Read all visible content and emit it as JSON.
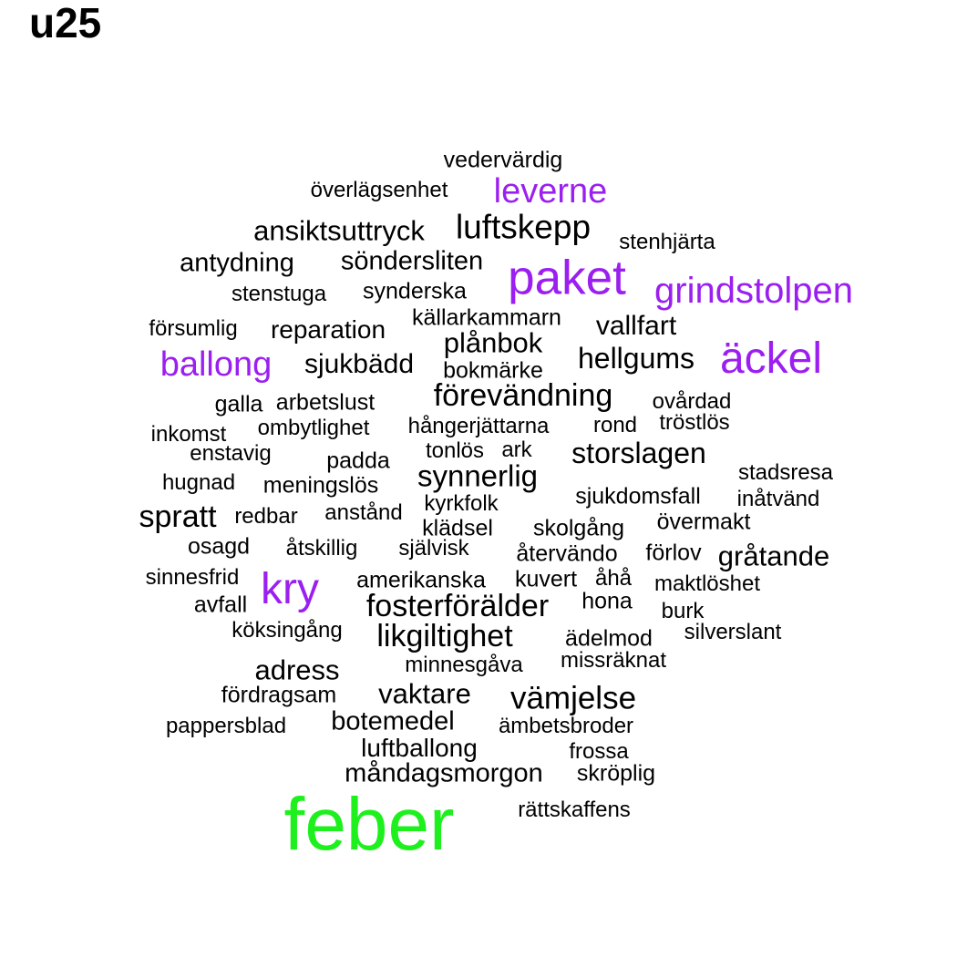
{
  "title": "u25",
  "colors": {
    "black": "#000000",
    "purple": "#9b1ff0",
    "green": "#1ef01e"
  },
  "words": [
    {
      "text": "vedervärdig",
      "color": "black"
    },
    {
      "text": "överlägsenhet",
      "color": "black"
    },
    {
      "text": "leverne",
      "color": "purple"
    },
    {
      "text": "ansiktsuttryck",
      "color": "black"
    },
    {
      "text": "luftskepp",
      "color": "black"
    },
    {
      "text": "stenhjärta",
      "color": "black"
    },
    {
      "text": "antydning",
      "color": "black"
    },
    {
      "text": "sönderslitеn",
      "color": "black"
    },
    {
      "text": "paket",
      "color": "purple"
    },
    {
      "text": "stenstuga",
      "color": "black"
    },
    {
      "text": "synderska",
      "color": "black"
    },
    {
      "text": "grindstolpen",
      "color": "purple"
    },
    {
      "text": "källarkammarn",
      "color": "black"
    },
    {
      "text": "försumlig",
      "color": "black"
    },
    {
      "text": "reparation",
      "color": "black"
    },
    {
      "text": "vallfart",
      "color": "black"
    },
    {
      "text": "plånbok",
      "color": "black"
    },
    {
      "text": "ballong",
      "color": "purple"
    },
    {
      "text": "sjukbädd",
      "color": "black"
    },
    {
      "text": "hellgums",
      "color": "black"
    },
    {
      "text": "äckel",
      "color": "purple"
    },
    {
      "text": "bokmärke",
      "color": "black"
    },
    {
      "text": "förevändning",
      "color": "black"
    },
    {
      "text": "galla",
      "color": "black"
    },
    {
      "text": "arbetslust",
      "color": "black"
    },
    {
      "text": "ovårdad",
      "color": "black"
    },
    {
      "text": "ombytlighet",
      "color": "black"
    },
    {
      "text": "hångerjättarna",
      "color": "black"
    },
    {
      "text": "rond",
      "color": "black"
    },
    {
      "text": "tröstlös",
      "color": "black"
    },
    {
      "text": "inkomst",
      "color": "black"
    },
    {
      "text": "enstavig",
      "color": "black"
    },
    {
      "text": "tonlös",
      "color": "black"
    },
    {
      "text": "ark",
      "color": "black"
    },
    {
      "text": "storslagen",
      "color": "black"
    },
    {
      "text": "padda",
      "color": "black"
    },
    {
      "text": "synnerlig",
      "color": "black"
    },
    {
      "text": "stadsresa",
      "color": "black"
    },
    {
      "text": "hugnad",
      "color": "black"
    },
    {
      "text": "meningslös",
      "color": "black"
    },
    {
      "text": "sjukdomsfall",
      "color": "black"
    },
    {
      "text": "inåtvänd",
      "color": "black"
    },
    {
      "text": "kyrkfolk",
      "color": "black"
    },
    {
      "text": "spratt",
      "color": "black"
    },
    {
      "text": "redbar",
      "color": "black"
    },
    {
      "text": "anstånd",
      "color": "black"
    },
    {
      "text": "övermakt",
      "color": "black"
    },
    {
      "text": "klädsel",
      "color": "black"
    },
    {
      "text": "skolgång",
      "color": "black"
    },
    {
      "text": "osagd",
      "color": "black"
    },
    {
      "text": "åtskillig",
      "color": "black"
    },
    {
      "text": "självisk",
      "color": "black"
    },
    {
      "text": "återvändo",
      "color": "black"
    },
    {
      "text": "förlov",
      "color": "black"
    },
    {
      "text": "gråtande",
      "color": "black"
    },
    {
      "text": "sinnesfrid",
      "color": "black"
    },
    {
      "text": "kry",
      "color": "purple"
    },
    {
      "text": "amerikanska",
      "color": "black"
    },
    {
      "text": "kuvert",
      "color": "black"
    },
    {
      "text": "åhå",
      "color": "black"
    },
    {
      "text": "maktlöshet",
      "color": "black"
    },
    {
      "text": "avfall",
      "color": "black"
    },
    {
      "text": "fosterförälder",
      "color": "black"
    },
    {
      "text": "hona",
      "color": "black"
    },
    {
      "text": "burk",
      "color": "black"
    },
    {
      "text": "köksingång",
      "color": "black"
    },
    {
      "text": "likgiltighet",
      "color": "black"
    },
    {
      "text": "ädelmod",
      "color": "black"
    },
    {
      "text": "silverslant",
      "color": "black"
    },
    {
      "text": "missräknat",
      "color": "black"
    },
    {
      "text": "adress",
      "color": "black"
    },
    {
      "text": "minnesgåva",
      "color": "black"
    },
    {
      "text": "fördragsam",
      "color": "black"
    },
    {
      "text": "vaktare",
      "color": "black"
    },
    {
      "text": "vämjelse",
      "color": "black"
    },
    {
      "text": "pappersblad",
      "color": "black"
    },
    {
      "text": "botemedel",
      "color": "black"
    },
    {
      "text": "ämbetsbroder",
      "color": "black"
    },
    {
      "text": "luftballong",
      "color": "black"
    },
    {
      "text": "frossa",
      "color": "black"
    },
    {
      "text": "måndagsmorgon",
      "color": "black"
    },
    {
      "text": "skröplig",
      "color": "black"
    },
    {
      "text": "feber",
      "color": "green"
    },
    {
      "text": "rättskaffens",
      "color": "black"
    }
  ]
}
